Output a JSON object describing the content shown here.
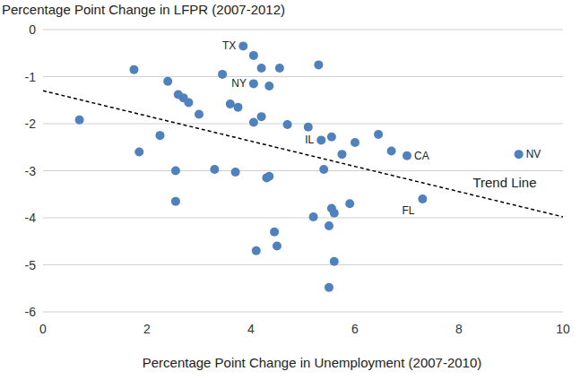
{
  "chart_data": {
    "type": "scatter",
    "y_label": "Percentage Point Change in LFPR (2007-2012)",
    "x_label": "Percentage Point Change in Unemployment (2007-2010)",
    "color": "#4f81bd",
    "marker": "circle",
    "grid": true,
    "xlim": [
      0,
      10
    ],
    "xticks": [
      0,
      2,
      4,
      6,
      8,
      10
    ],
    "ylim": [
      -6,
      0
    ],
    "yticks": [
      0,
      -1,
      -2,
      -3,
      -4,
      -5,
      -6
    ],
    "x": [
      3.85,
      4.05,
      4.2,
      4.55,
      5.3,
      1.75,
      3.45,
      2.4,
      4.05,
      4.35,
      2.6,
      2.7,
      2.8,
      3.6,
      3.75,
      3.0,
      4.2,
      0.7,
      4.05,
      4.7,
      5.1,
      2.25,
      5.35,
      5.55,
      6.45,
      6.0,
      1.85,
      5.75,
      6.7,
      7.0,
      9.15,
      2.55,
      3.3,
      3.7,
      5.4,
      4.35,
      4.3,
      7.3,
      2.55,
      5.9,
      5.55,
      5.6,
      5.2,
      5.5,
      4.45,
      4.5,
      4.1,
      5.6,
      5.5
    ],
    "values": [
      -0.35,
      -0.55,
      -0.82,
      -0.82,
      -0.75,
      -0.85,
      -0.95,
      -1.1,
      -1.15,
      -1.2,
      -1.38,
      -1.45,
      -1.55,
      -1.58,
      -1.65,
      -1.8,
      -1.85,
      -1.92,
      -1.97,
      -2.02,
      -2.07,
      -2.25,
      -2.35,
      -2.28,
      -2.23,
      -2.4,
      -2.6,
      -2.65,
      -2.58,
      -2.68,
      -2.65,
      -3.0,
      -2.97,
      -3.03,
      -2.97,
      -3.12,
      -3.15,
      -3.6,
      -3.65,
      -3.7,
      -3.8,
      -3.9,
      -3.98,
      -4.17,
      -4.3,
      -4.6,
      -4.7,
      -4.93,
      -5.48
    ],
    "point_labels": [
      "TX",
      null,
      null,
      null,
      null,
      null,
      null,
      null,
      "NY",
      null,
      null,
      null,
      null,
      null,
      null,
      null,
      null,
      null,
      null,
      null,
      null,
      null,
      "IL",
      null,
      null,
      null,
      null,
      null,
      null,
      "CA",
      "NV",
      null,
      null,
      null,
      null,
      null,
      null,
      "FL",
      null,
      null,
      null,
      null,
      null,
      null,
      null,
      null,
      null,
      null,
      null
    ],
    "trend_line": {
      "label": "Trend Line",
      "line_style": "dashed",
      "color": "#000000",
      "x": [
        0,
        10
      ],
      "values": [
        -1.3,
        -3.98
      ]
    }
  }
}
